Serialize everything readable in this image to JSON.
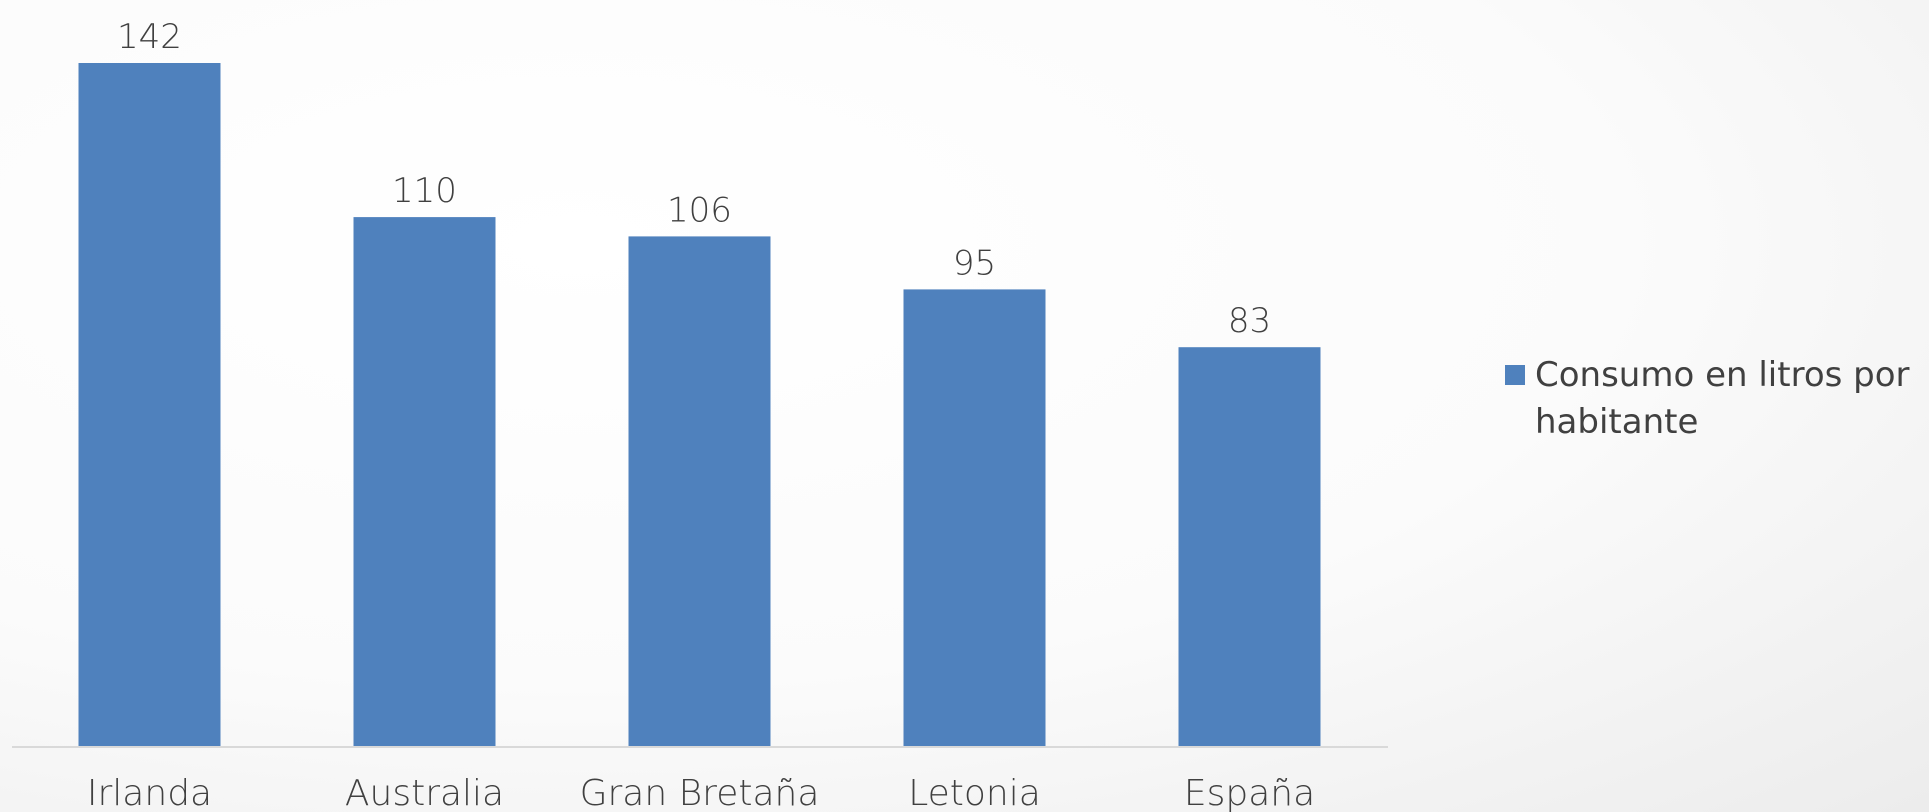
{
  "chart_data": {
    "type": "bar",
    "title": "",
    "xlabel": "",
    "ylabel": "",
    "categories": [
      "Irlanda",
      "Australia",
      "Gran Bretaña",
      "Letonia",
      "España"
    ],
    "series": [
      {
        "name": "Consumo en litros por habitante",
        "values": [
          142,
          110,
          106,
          95,
          83
        ]
      }
    ],
    "ylim": [
      0,
      142
    ],
    "grid": false,
    "data_labels": true,
    "legend_position": "right",
    "colors": {
      "bar": "#4f81bd",
      "axis": "#d9d9d9",
      "text": "#404040"
    }
  },
  "legend": {
    "line1": "Consumo en litros por",
    "line2": "habitante"
  }
}
